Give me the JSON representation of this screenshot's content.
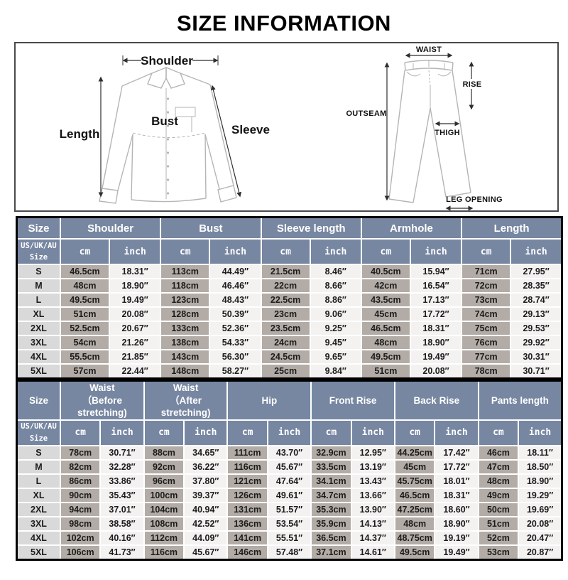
{
  "title": "SIZE INFORMATION",
  "units": {
    "cm": "cm",
    "inch": "inch"
  },
  "colors": {
    "header_bg": "#7787a2",
    "size_col_bg": "#d9d9d9",
    "cm_col_bg": "#b3aca6",
    "inch_col_bg": "#f4f2f1",
    "table_border": "#000000",
    "diagram_line": "#b5b5b5"
  },
  "diagram": {
    "shirt": {
      "shoulder": "Shoulder",
      "length": "Length",
      "bust": "Bust",
      "sleeve": "Sleeve"
    },
    "pants": {
      "waist": "WAIST",
      "rise": "RISE",
      "outseam": "OUTSEAM",
      "thigh": "THIGH",
      "leg_opening": "LEG OPENING"
    }
  },
  "tops_table": {
    "size_header": "Size",
    "size_subheader": "US/UK/AU\nSize",
    "groups": [
      "Shoulder",
      "Bust",
      "Sleeve length",
      "Armhole",
      "Length"
    ],
    "rows": [
      {
        "size": "S",
        "cells": [
          "46.5cm",
          "18.31″",
          "113cm",
          "44.49″",
          "21.5cm",
          "8.46″",
          "40.5cm",
          "15.94″",
          "71cm",
          "27.95″"
        ]
      },
      {
        "size": "M",
        "cells": [
          "48cm",
          "18.90″",
          "118cm",
          "46.46″",
          "22cm",
          "8.66″",
          "42cm",
          "16.54″",
          "72cm",
          "28.35″"
        ]
      },
      {
        "size": "L",
        "cells": [
          "49.5cm",
          "19.49″",
          "123cm",
          "48.43″",
          "22.5cm",
          "8.86″",
          "43.5cm",
          "17.13″",
          "73cm",
          "28.74″"
        ]
      },
      {
        "size": "XL",
        "cells": [
          "51cm",
          "20.08″",
          "128cm",
          "50.39″",
          "23cm",
          "9.06″",
          "45cm",
          "17.72″",
          "74cm",
          "29.13″"
        ]
      },
      {
        "size": "2XL",
        "cells": [
          "52.5cm",
          "20.67″",
          "133cm",
          "52.36″",
          "23.5cm",
          "9.25″",
          "46.5cm",
          "18.31″",
          "75cm",
          "29.53″"
        ]
      },
      {
        "size": "3XL",
        "cells": [
          "54cm",
          "21.26″",
          "138cm",
          "54.33″",
          "24cm",
          "9.45″",
          "48cm",
          "18.90″",
          "76cm",
          "29.92″"
        ]
      },
      {
        "size": "4XL",
        "cells": [
          "55.5cm",
          "21.85″",
          "143cm",
          "56.30″",
          "24.5cm",
          "9.65″",
          "49.5cm",
          "19.49″",
          "77cm",
          "30.31″"
        ]
      },
      {
        "size": "5XL",
        "cells": [
          "57cm",
          "22.44″",
          "148cm",
          "58.27″",
          "25cm",
          "9.84″",
          "51cm",
          "20.08″",
          "78cm",
          "30.71″"
        ]
      }
    ]
  },
  "bottoms_table": {
    "size_header": "Size",
    "size_subheader": "US/UK/AU\nSize",
    "groups": [
      "Waist\n（Before stretching)",
      "Waist\n（After stretching)",
      "Hip",
      "Front Rise",
      "Back Rise",
      "Pants length"
    ],
    "rows": [
      {
        "size": "S",
        "cells": [
          "78cm",
          "30.71″",
          "88cm",
          "34.65″",
          "111cm",
          "43.70″",
          "32.9cm",
          "12.95″",
          "44.25cm",
          "17.42″",
          "46cm",
          "18.11″"
        ]
      },
      {
        "size": "M",
        "cells": [
          "82cm",
          "32.28″",
          "92cm",
          "36.22″",
          "116cm",
          "45.67″",
          "33.5cm",
          "13.19″",
          "45cm",
          "17.72″",
          "47cm",
          "18.50″"
        ]
      },
      {
        "size": "L",
        "cells": [
          "86cm",
          "33.86″",
          "96cm",
          "37.80″",
          "121cm",
          "47.64″",
          "34.1cm",
          "13.43″",
          "45.75cm",
          "18.01″",
          "48cm",
          "18.90″"
        ]
      },
      {
        "size": "XL",
        "cells": [
          "90cm",
          "35.43″",
          "100cm",
          "39.37″",
          "126cm",
          "49.61″",
          "34.7cm",
          "13.66″",
          "46.5cm",
          "18.31″",
          "49cm",
          "19.29″"
        ]
      },
      {
        "size": "2XL",
        "cells": [
          "94cm",
          "37.01″",
          "104cm",
          "40.94″",
          "131cm",
          "51.57″",
          "35.3cm",
          "13.90″",
          "47.25cm",
          "18.60″",
          "50cm",
          "19.69″"
        ]
      },
      {
        "size": "3XL",
        "cells": [
          "98cm",
          "38.58″",
          "108cm",
          "42.52″",
          "136cm",
          "53.54″",
          "35.9cm",
          "14.13″",
          "48cm",
          "18.90″",
          "51cm",
          "20.08″"
        ]
      },
      {
        "size": "4XL",
        "cells": [
          "102cm",
          "40.16″",
          "112cm",
          "44.09″",
          "141cm",
          "55.51″",
          "36.5cm",
          "14.37″",
          "48.75cm",
          "19.19″",
          "52cm",
          "20.47″"
        ]
      },
      {
        "size": "5XL",
        "cells": [
          "106cm",
          "41.73″",
          "116cm",
          "45.67″",
          "146cm",
          "57.48″",
          "37.1cm",
          "14.61″",
          "49.5cm",
          "19.49″",
          "53cm",
          "20.87″"
        ]
      }
    ]
  }
}
